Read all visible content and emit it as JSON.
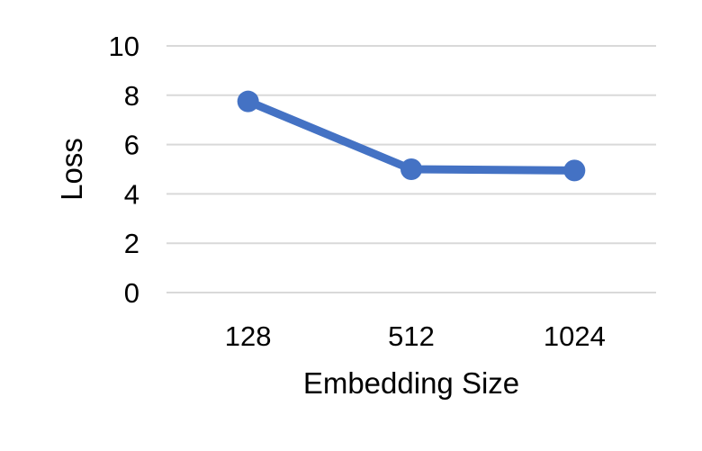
{
  "chart_data": {
    "type": "line",
    "categories": [
      "128",
      "512",
      "1024"
    ],
    "series": [
      {
        "values": [
          7.75,
          5.0,
          4.95
        ]
      }
    ],
    "xlabel": "Embedding Size",
    "ylabel": "Loss",
    "ylim": [
      0,
      10
    ],
    "yticks": [
      0,
      2,
      4,
      6,
      8,
      10
    ],
    "grid": "horizontal",
    "legend": "none",
    "series_color": "#4472C4",
    "grid_color": "#D9D9D9"
  }
}
